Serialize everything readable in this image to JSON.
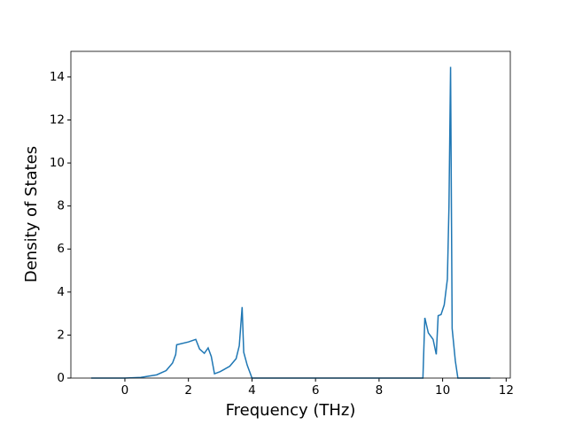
{
  "chart_data": {
    "type": "line",
    "x_label": "Frequency (THz)",
    "y_label": "Density of States",
    "series": [
      {
        "name": "DOS",
        "color": "#1f77b4",
        "x": [
          -1.06,
          0,
          0.5,
          1.0,
          1.3,
          1.5,
          1.6,
          1.63,
          2.0,
          2.23,
          2.35,
          2.5,
          2.62,
          2.72,
          2.82,
          3.0,
          3.3,
          3.5,
          3.6,
          3.69,
          3.74,
          3.85,
          3.95,
          4.0,
          9.38,
          9.44,
          9.55,
          9.7,
          9.8,
          9.86,
          9.95,
          10.05,
          10.15,
          10.2,
          10.25,
          10.3,
          10.4,
          10.48,
          11.5
        ],
        "values": [
          0,
          0,
          0.03,
          0.15,
          0.35,
          0.7,
          1.1,
          1.55,
          1.68,
          1.8,
          1.35,
          1.15,
          1.4,
          1.0,
          0.2,
          0.3,
          0.55,
          0.9,
          1.5,
          3.3,
          1.2,
          0.6,
          0.2,
          0,
          0,
          2.8,
          2.1,
          1.8,
          1.1,
          2.9,
          2.95,
          3.4,
          4.6,
          8,
          14.47,
          2.3,
          0.8,
          0,
          0
        ]
      }
    ],
    "xlim": [
      -1.7,
      12.13
    ],
    "ylim": [
      0,
      15.19
    ],
    "xticks": [
      0,
      2,
      4,
      6,
      8,
      10,
      12
    ],
    "yticks": [
      0,
      2,
      4,
      6,
      8,
      10,
      12,
      14
    ]
  }
}
